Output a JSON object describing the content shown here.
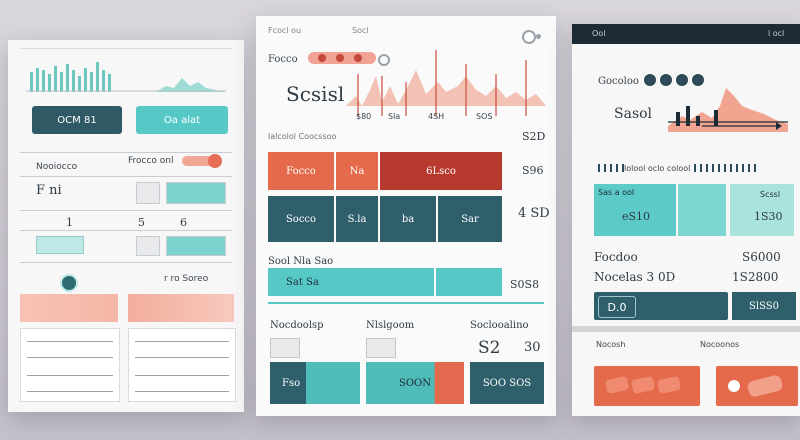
{
  "colors": {
    "teal": "#4cc7c5",
    "dark_teal": "#2f5f6b",
    "coral": "#e86a4d",
    "red": "#b83a2e",
    "navy": "#1d2b36",
    "salmon": "#f4b3a3"
  },
  "left": {
    "btn_dark": "OCM 81",
    "btn_teal": "Oa alat",
    "section_label": "Nooiocco",
    "toggle_label": "Frocco onl",
    "row1_label": "F ni",
    "row2_left": "1",
    "row2_mid": "5",
    "row2_right": "6",
    "footer_text": "r ro Soreo",
    "table_rows": [
      "",
      "",
      "",
      ""
    ]
  },
  "middle": {
    "header_small_left": "Fcocl ou",
    "header_small_right": "Socl",
    "top_label": "Focco",
    "title": "Scsisl",
    "values": [
      "$80",
      "Sla",
      "4SH",
      "SOS"
    ],
    "legend_text": "lalcolol Coocssoo",
    "side_value_1": "S2D",
    "row1": {
      "a": "Focco",
      "b": "Na",
      "c": "6Lsco",
      "side": "S96"
    },
    "row2": {
      "a": "Socco",
      "b": "S.la",
      "c": "ba",
      "d": "Sar",
      "side": "4 SD"
    },
    "section2_title": "Sool Nla Sao",
    "bar_value": "Sat Sa",
    "bar_side": "S0S8",
    "footer_labels": [
      "Nocdoolsp",
      "Nlslgoom",
      "Soclooalino"
    ],
    "footer_side": "30",
    "footer_big": "S2",
    "footer_cells": [
      "Fso",
      "SOON",
      "SOO SOS"
    ]
  },
  "right": {
    "header_left": "Ool",
    "header_right": "l ocl",
    "top_label": "Gocoloo",
    "title": "Sasol",
    "legend": "lolool oclo colool",
    "tile1_label": "Sas a ool",
    "tile1_value": "eS10",
    "tile3_label": "Scssl",
    "tile3_value": "1S30",
    "row1_left": "Focdoo",
    "row1_right": "S6000",
    "row2_left": "Nocelas 3 0D",
    "row2_right": "1S2800",
    "dark_box": "D.0",
    "dark_box2": "SlSS0",
    "footer_left": "Nocosh",
    "footer_right": "Nocoonos"
  }
}
